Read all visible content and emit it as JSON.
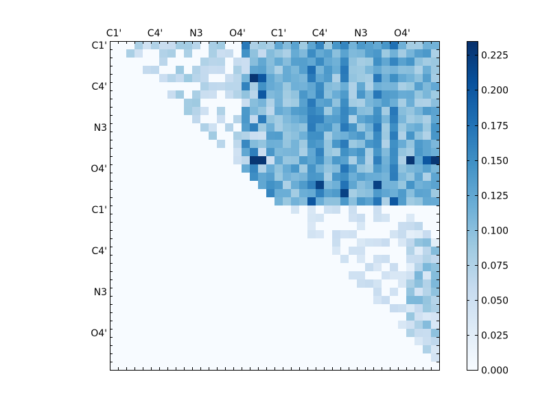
{
  "chart_data": {
    "type": "heatmap",
    "colormap": "Blues",
    "n": 40,
    "x_tick_labels": [
      "C1'",
      "C4'",
      "N3",
      "O4'",
      "C1'",
      "C4'",
      "N3",
      "O4'"
    ],
    "y_tick_labels": [
      "C1'",
      "C4'",
      "N3",
      "O4'",
      "C1'",
      "C4'",
      "N3",
      "O4'"
    ],
    "colorbar": {
      "vmin": 0.0,
      "vmax": 0.235,
      "tick_values": [
        0.0,
        0.025,
        0.05,
        0.075,
        0.1,
        0.125,
        0.15,
        0.175,
        0.2,
        0.225
      ],
      "tick_labels": [
        "0.000",
        "0.025",
        "0.050",
        "0.075",
        "0.100",
        "0.125",
        "0.150",
        "0.175",
        "0.200",
        "0.225"
      ]
    },
    "blocks": [
      {
        "rows": [
          0,
          19
        ],
        "cols": [
          0,
          19
        ],
        "region": "upper-left triangle",
        "values": "sparse, mostly 0.01-0.06, peaks ~0.10"
      },
      {
        "rows": [
          0,
          19
        ],
        "cols": [
          20,
          39
        ],
        "region": "upper-right block",
        "values": "dense, 0.08-0.15, peaks ~0.20"
      },
      {
        "rows": [
          20,
          39
        ],
        "cols": [
          20,
          39
        ],
        "region": "lower-right triangle",
        "values": "sparse, mostly 0.01-0.05, peaks ~0.11"
      }
    ],
    "peaks": [
      {
        "row": 4,
        "col": 17,
        "value": 0.23
      },
      {
        "row": 4,
        "col": 18,
        "value": 0.2
      },
      {
        "row": 6,
        "col": 18,
        "value": 0.2
      },
      {
        "row": 14,
        "col": 17,
        "value": 0.23
      },
      {
        "row": 14,
        "col": 18,
        "value": 0.23
      },
      {
        "row": 14,
        "col": 36,
        "value": 0.23
      },
      {
        "row": 14,
        "col": 38,
        "value": 0.2
      },
      {
        "row": 14,
        "col": 39,
        "value": 0.23
      },
      {
        "row": 17,
        "col": 25,
        "value": 0.22
      },
      {
        "row": 17,
        "col": 32,
        "value": 0.22
      },
      {
        "row": 18,
        "col": 28,
        "value": 0.22
      },
      {
        "row": 19,
        "col": 24,
        "value": 0.2
      },
      {
        "row": 19,
        "col": 34,
        "value": 0.2
      }
    ]
  }
}
